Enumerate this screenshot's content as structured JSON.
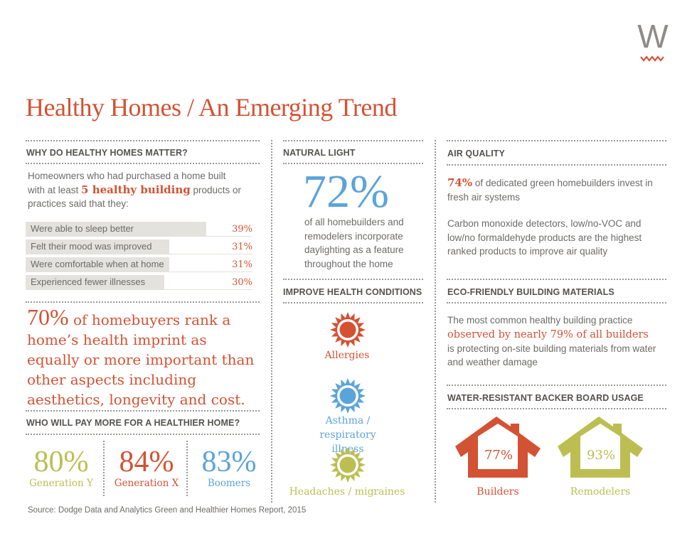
{
  "logo": {
    "letter": "W"
  },
  "title": "Healthy Homes / An Emerging Trend",
  "colors": {
    "red": "#d35233",
    "blue": "#5ba4d9",
    "green": "#bcbe52",
    "bar": "#e4e2dc"
  },
  "why": {
    "heading": "WHY DO HEALTHY HOMES MATTER?",
    "intro_pre": "Homeowners who had purchased a home built with at least ",
    "intro_highlight": "5 healthy building",
    "intro_post": " products or practices said that they:"
  },
  "chart_data": {
    "type": "bar",
    "orientation": "horizontal",
    "categories": [
      "Were able to sleep better",
      "Felt their mood was improved",
      "Were comfortable when at home",
      "Experienced fewer illnesses"
    ],
    "values": [
      39,
      31,
      31,
      30
    ],
    "value_labels": [
      "39%",
      "31%",
      "31%",
      "30%"
    ]
  },
  "rank": {
    "pct": "70%",
    "text": " of homebuyers rank a home’s health imprint as equally or more important than other aspects including aesthetics, longevity and cost."
  },
  "pay": {
    "heading": "WHO WILL PAY MORE FOR A HEALTHIER HOME?",
    "items": [
      {
        "pct": "80%",
        "label": "Generation Y",
        "color": "#bcbe52"
      },
      {
        "pct": "84%",
        "label": "Generation X",
        "color": "#d35233"
      },
      {
        "pct": "83%",
        "label": "Boomers",
        "color": "#5ba4d9"
      }
    ]
  },
  "light": {
    "heading": "NATURAL LIGHT",
    "pct": "72%",
    "text": "of all homebuilders and remodelers incorporate daylighting as a feature throughout the home"
  },
  "health": {
    "heading": "IMPROVE HEALTH CONDITIONS",
    "items": [
      {
        "label": "Allergies",
        "icon": "sun-icon",
        "color": "#d35233"
      },
      {
        "label": "Asthma / respiratory illness",
        "icon": "sun-icon",
        "color": "#5ba4d9"
      },
      {
        "label": "Headaches / migraines",
        "icon": "sun-icon",
        "color": "#bcbe52"
      }
    ]
  },
  "air": {
    "heading": "AIR QUALITY",
    "pct": "74%",
    "text1": " of dedicated green homebuilders invest in fresh air systems",
    "text2": "Carbon monoxide detectors, low/no-VOC and low/no formaldehyde products are the highest ranked products to improve air quality"
  },
  "eco": {
    "heading": "ECO-FRIENDLY BUILDING MATERIALS",
    "pre": "The most common healthy building practice",
    "highlight": "observed by nearly 79% of all builders",
    "post": "is protecting on-site building materials from water and weather damage"
  },
  "backer": {
    "heading": "WATER-RESISTANT BACKER BOARD USAGE",
    "items": [
      {
        "pct": "77%",
        "label": "Builders",
        "color": "#d35233"
      },
      {
        "pct": "93%",
        "label": "Remodelers",
        "color": "#bcbe52"
      }
    ]
  },
  "source": "Source: Dodge Data and Analytics Green and Healthier Homes Report, 2015"
}
